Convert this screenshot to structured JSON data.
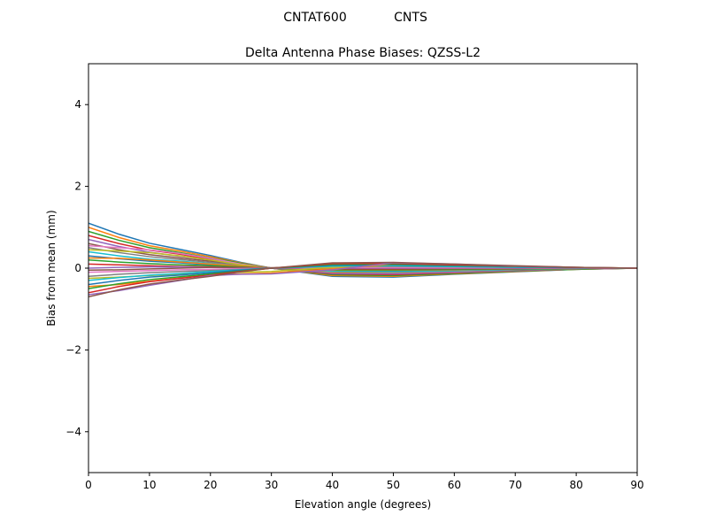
{
  "chart_data": {
    "type": "line",
    "suptitle_left": "CNTAT600",
    "suptitle_right": "CNTS",
    "title": "Delta Antenna Phase Biases: QZSS-L2",
    "xlabel": "Elevation angle (degrees)",
    "ylabel": "Bias from mean (mm)",
    "xlim": [
      0,
      90
    ],
    "ylim": [
      -5,
      5
    ],
    "xticks": [
      0,
      10,
      20,
      30,
      40,
      50,
      60,
      70,
      80,
      90
    ],
    "yticks": [
      -4,
      -2,
      0,
      2,
      4
    ],
    "ytick_labels": [
      "−4",
      "−2",
      "0",
      "2",
      "4"
    ],
    "grid": false,
    "colors": [
      "#1f77b4",
      "#ff7f0e",
      "#2ca02c",
      "#d62728",
      "#9467bd",
      "#8c564b",
      "#e377c2",
      "#7f7f7f",
      "#bcbd22",
      "#17becf"
    ],
    "x": [
      0,
      5,
      10,
      15,
      20,
      25,
      30,
      40,
      50,
      60,
      70,
      80,
      90
    ],
    "series": [
      [
        1.1,
        0.83,
        0.61,
        0.46,
        0.31,
        0.14,
        0,
        -0.2,
        -0.22,
        -0.15,
        -0.09,
        -0.03,
        0
      ],
      [
        1.0,
        0.75,
        0.55,
        0.42,
        0.28,
        0.13,
        0,
        -0.18,
        -0.2,
        -0.14,
        -0.08,
        -0.03,
        0
      ],
      [
        0.9,
        0.68,
        0.5,
        0.38,
        0.25,
        0.12,
        0,
        -0.16,
        -0.18,
        -0.13,
        -0.07,
        -0.03,
        0
      ],
      [
        0.8,
        0.6,
        0.44,
        0.34,
        0.22,
        0.1,
        0,
        -0.14,
        -0.16,
        -0.11,
        -0.06,
        -0.02,
        0
      ],
      [
        0.7,
        0.53,
        0.39,
        0.29,
        0.2,
        0.09,
        0,
        -0.13,
        -0.14,
        -0.1,
        -0.06,
        -0.02,
        0
      ],
      [
        0.6,
        0.45,
        0.33,
        0.25,
        0.17,
        0.08,
        0,
        -0.11,
        -0.12,
        -0.08,
        -0.05,
        -0.02,
        0
      ],
      [
        0.55,
        0.5,
        0.45,
        0.36,
        0.24,
        0.1,
        0,
        -0.1,
        -0.11,
        -0.08,
        -0.04,
        -0.02,
        0
      ],
      [
        0.5,
        0.38,
        0.28,
        0.21,
        0.14,
        0.07,
        0,
        -0.09,
        -0.1,
        -0.07,
        -0.04,
        -0.02,
        0
      ],
      [
        0.45,
        0.42,
        0.38,
        0.3,
        0.2,
        0.08,
        0,
        -0.08,
        -0.09,
        -0.06,
        -0.03,
        -0.01,
        0
      ],
      [
        0.4,
        0.3,
        0.22,
        0.17,
        0.11,
        0.05,
        0,
        -0.07,
        -0.08,
        -0.06,
        -0.03,
        -0.01,
        0
      ],
      [
        0.3,
        0.23,
        0.17,
        0.13,
        0.08,
        0.04,
        0,
        -0.05,
        -0.06,
        -0.04,
        -0.02,
        -0.01,
        0
      ],
      [
        0.25,
        0.24,
        0.2,
        0.15,
        0.1,
        0.05,
        0,
        -0.05,
        -0.05,
        -0.04,
        -0.02,
        -0.01,
        0
      ],
      [
        0.2,
        0.15,
        0.11,
        0.08,
        0.06,
        0.03,
        0,
        -0.04,
        -0.04,
        -0.03,
        -0.02,
        -0.01,
        0
      ],
      [
        0.1,
        0.08,
        0.06,
        0.04,
        0.03,
        0.01,
        0,
        -0.02,
        -0.02,
        -0.01,
        -0.01,
        0,
        0
      ],
      [
        0,
        0.02,
        0.03,
        0.03,
        0.02,
        0.01,
        0,
        0,
        0,
        0,
        0,
        0,
        0
      ],
      [
        -0.05,
        -0.04,
        -0.02,
        0,
        0.02,
        0.02,
        0.01,
        0.03,
        0.03,
        0.02,
        0.01,
        0,
        0
      ],
      [
        -0.1,
        -0.08,
        -0.06,
        -0.04,
        -0.03,
        -0.01,
        0,
        0.02,
        0.02,
        0.01,
        0.01,
        0,
        0
      ],
      [
        -0.2,
        -0.15,
        -0.11,
        -0.08,
        -0.06,
        -0.03,
        0,
        0.04,
        0.04,
        0.03,
        0.02,
        0.01,
        0
      ],
      [
        -0.25,
        -0.22,
        -0.18,
        -0.15,
        -0.12,
        -0.1,
        -0.08,
        0.02,
        0.06,
        0.05,
        0.03,
        0.01,
        0
      ],
      [
        -0.3,
        -0.23,
        -0.17,
        -0.13,
        -0.08,
        -0.04,
        0,
        0.05,
        0.06,
        0.04,
        0.02,
        0.01,
        0
      ],
      [
        -0.4,
        -0.3,
        -0.22,
        -0.17,
        -0.11,
        -0.05,
        0,
        0.07,
        0.08,
        0.06,
        0.03,
        0.01,
        0
      ],
      [
        -0.45,
        -0.4,
        -0.32,
        -0.24,
        -0.16,
        -0.14,
        -0.12,
        -0.02,
        0.1,
        0.08,
        0.04,
        0.02,
        0
      ],
      [
        -0.5,
        -0.38,
        -0.28,
        -0.21,
        -0.14,
        -0.07,
        0,
        0.09,
        0.1,
        0.07,
        0.04,
        0.02,
        0
      ],
      [
        -0.6,
        -0.45,
        -0.33,
        -0.25,
        -0.17,
        -0.08,
        0,
        0.11,
        0.12,
        0.08,
        0.05,
        0.02,
        0
      ],
      [
        -0.65,
        -0.55,
        -0.42,
        -0.3,
        -0.18,
        -0.15,
        -0.14,
        -0.04,
        0.13,
        0.1,
        0.05,
        0.02,
        0
      ],
      [
        -0.7,
        -0.53,
        -0.39,
        -0.29,
        -0.2,
        -0.09,
        0,
        0.13,
        0.14,
        0.1,
        0.06,
        0.02,
        0
      ]
    ]
  }
}
